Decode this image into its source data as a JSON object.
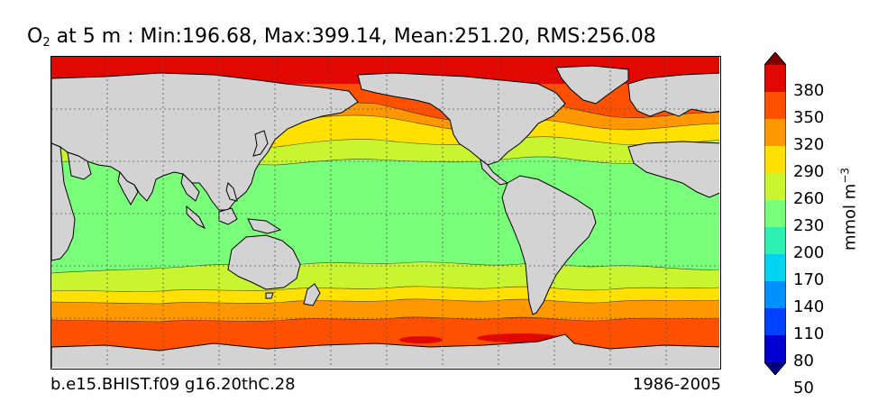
{
  "title": {
    "variable": "O",
    "subscript": "2",
    "text": " at 5 m : Min:196.68, Max:399.14, Mean:251.20, RMS:256.08"
  },
  "footer": {
    "case_name": "b.e15.BHIST.f09 g16.20thC.28",
    "years": "1986-2005"
  },
  "colorbar": {
    "ticks": [
      "380",
      "350",
      "320",
      "290",
      "260",
      "230",
      "200",
      "170",
      "140",
      "110",
      "80",
      "50"
    ],
    "levels": [
      35,
      65,
      95,
      125,
      155,
      185,
      215,
      245,
      275,
      305,
      335,
      365,
      395
    ],
    "colors": [
      "#00007f",
      "#0000d0",
      "#0040ff",
      "#0090ff",
      "#00d4f0",
      "#2ef0b0",
      "#7aff7a",
      "#c8f530",
      "#ffe000",
      "#ff9800",
      "#ff5000",
      "#e00800",
      "#800000"
    ],
    "unit_base": "mmol m",
    "unit_exp": "−3"
  },
  "map": {
    "land_color": "#d3d3d3",
    "gridline_color": "#555555"
  },
  "chart_data": {
    "type": "heatmap",
    "title": "O2 at 5 m : Min:196.68, Max:399.14, Mean:251.20, RMS:256.08",
    "variable": "O2 at 5 m",
    "units": "mmol m-3",
    "summary": {
      "min": 196.68,
      "max": 399.14,
      "mean": 251.2,
      "rms": 256.08
    },
    "contour_levels": [
      50,
      80,
      110,
      140,
      170,
      200,
      230,
      260,
      290,
      320,
      350,
      380
    ],
    "period": "1986-2005",
    "case": "b.e15.BHIST.f09 g16.20thC.28",
    "grid": true,
    "colorbar_placement": "right"
  }
}
